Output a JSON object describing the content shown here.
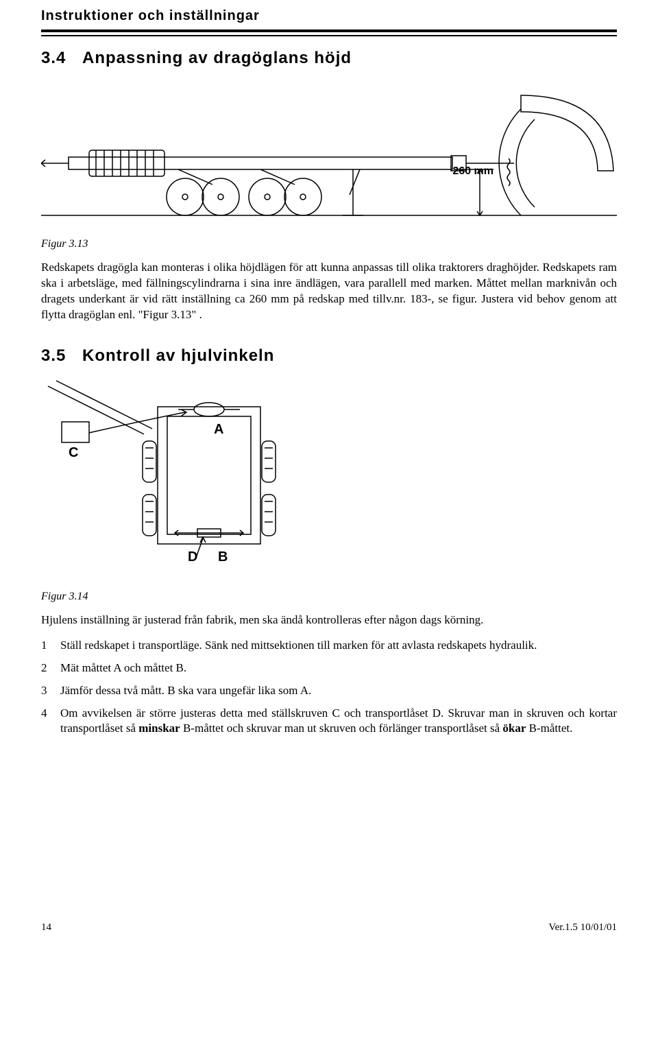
{
  "header": {
    "running_head": "Instruktioner och inställningar"
  },
  "section34": {
    "number": "3.4",
    "title": "Anpassning av dragöglans höjd",
    "figure_caption": "Figur 3.13",
    "dimension_label": "260 mm",
    "para": "Redskapets dragögla kan monteras i olika höjdlägen för att kunna anpassas till olika traktorers draghöjder. Redskapets ram ska i arbetsläge, med fällningscylindrarna i sina inre ändlägen, vara parallell med marken. Måttet mellan marknivån och dragets underkant är vid rätt inställning ca 260 mm på redskap med tillv.nr. 183-, se figur. Justera vid behov genom att flytta dragöglan enl. \"Figur 3.13\" ."
  },
  "section35": {
    "number": "3.5",
    "title": "Kontroll av hjulvinkeln",
    "figure_caption": "Figur 3.14",
    "labels": {
      "A": "A",
      "B": "B",
      "C": "C",
      "D": "D"
    },
    "intro": "Hjulens inställning är justerad från fabrik, men ska ändå kontrolleras efter någon dags körning.",
    "steps": [
      "Ställ redskapet i transportläge. Sänk ned mittsektionen till marken för att avlasta redskapets hydraulik.",
      "Mät måttet A och måttet B.",
      "Jämför dessa två mått. B ska vara ungefär lika som A.",
      "Om avvikelsen är större justeras detta med ställskruven C och transportlåset D. Skruvar man in skruven och kortar transportlåset så <b>minskar</b> B-måttet och skruvar man ut skruven och förlänger transportlåset så <b>ökar</b> B-måttet."
    ]
  },
  "footer": {
    "page_number": "14",
    "version": "Ver.1.5 10/01/01"
  },
  "colors": {
    "text": "#000000",
    "bg": "#ffffff",
    "line": "#000000"
  }
}
